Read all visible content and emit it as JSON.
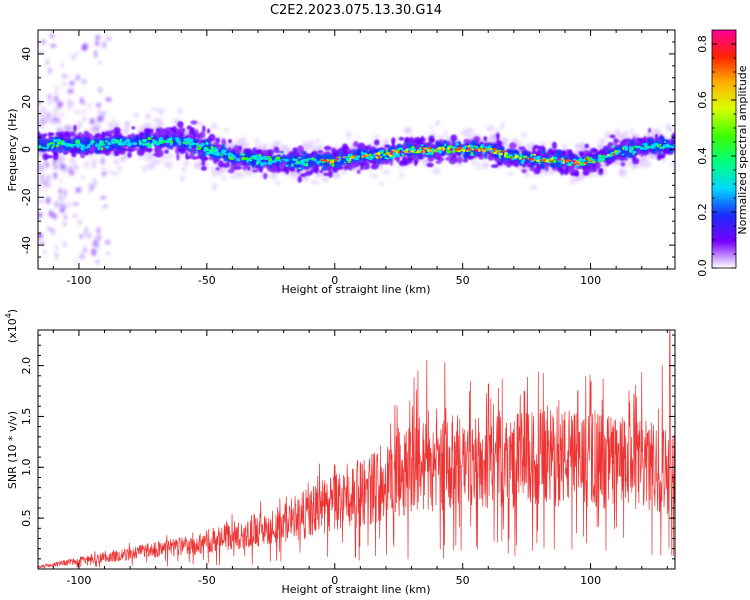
{
  "title": "C2E2.2023.075.13.30.G14",
  "chart_data": [
    {
      "type": "heatmap",
      "name": "spectrogram",
      "xlabel": "Height of straight line (km)",
      "ylabel": "Frequency (Hz)",
      "xlim": [
        -116,
        133
      ],
      "ylim": [
        -50,
        50
      ],
      "xticks": [
        -100,
        -50,
        0,
        50,
        100
      ],
      "yticks": [
        -40,
        -20,
        0,
        20,
        40
      ],
      "colorbar": {
        "label": "Normalized spectral amplitude",
        "range": [
          0.0,
          0.85
        ],
        "ticks": [
          "0.0",
          "0.2",
          "0.4",
          "0.6",
          "0.8"
        ],
        "colors": [
          "#ffffff",
          "#7700ff",
          "#1a2bff",
          "#00d8ff",
          "#00ff7f",
          "#3cff00",
          "#d8ff00",
          "#ffb000",
          "#ff2200",
          "#ff0099"
        ]
      },
      "band_center_hz": [
        [
          -116,
          2
        ],
        [
          -100,
          2
        ],
        [
          -80,
          3
        ],
        [
          -60,
          4
        ],
        [
          -50,
          0
        ],
        [
          -40,
          -3
        ],
        [
          -30,
          -4
        ],
        [
          -20,
          -5
        ],
        [
          -10,
          -5
        ],
        [
          0,
          -5
        ],
        [
          10,
          -3
        ],
        [
          20,
          -2
        ],
        [
          30,
          0
        ],
        [
          40,
          0
        ],
        [
          50,
          0
        ],
        [
          60,
          0
        ],
        [
          70,
          -3
        ],
        [
          80,
          -4
        ],
        [
          90,
          -5
        ],
        [
          100,
          -5
        ],
        [
          110,
          -1
        ],
        [
          120,
          1
        ],
        [
          133,
          2
        ]
      ]
    },
    {
      "type": "line",
      "name": "snr",
      "xlabel": "Height of straight line (km)",
      "ylabel": "SNR (10 * v/v)",
      "scale_label": "(x10",
      "scale_exponent": "4",
      "scale_suffix": ")",
      "xlim": [
        -116,
        133
      ],
      "ylim": [
        0,
        2.35
      ],
      "xticks": [
        -100,
        -50,
        0,
        50,
        100
      ],
      "yticks": [
        "0.5",
        "1.0",
        "1.5",
        "2.0"
      ],
      "color": "#ee3333",
      "trend": [
        [
          -116,
          0.02
        ],
        [
          -100,
          0.08
        ],
        [
          -80,
          0.15
        ],
        [
          -60,
          0.22
        ],
        [
          -40,
          0.32
        ],
        [
          -20,
          0.45
        ],
        [
          0,
          0.65
        ],
        [
          10,
          0.75
        ],
        [
          20,
          0.85
        ],
        [
          30,
          1.0
        ],
        [
          40,
          1.03
        ],
        [
          50,
          1.05
        ],
        [
          60,
          1.05
        ],
        [
          70,
          1.06
        ],
        [
          80,
          1.08
        ],
        [
          90,
          1.1
        ],
        [
          100,
          1.08
        ],
        [
          110,
          1.05
        ],
        [
          120,
          1.02
        ],
        [
          133,
          0.95
        ]
      ],
      "peaks": [
        [
          31,
          1.88
        ],
        [
          32.5,
          1.95
        ],
        [
          36,
          2.05
        ],
        [
          43,
          2.03
        ],
        [
          53,
          1.85
        ],
        [
          60,
          1.82
        ],
        [
          74,
          1.75
        ],
        [
          95,
          1.75
        ],
        [
          100,
          1.83
        ],
        [
          115,
          1.75
        ],
        [
          117,
          1.72
        ],
        [
          120,
          1.93
        ],
        [
          128,
          2.0
        ],
        [
          131,
          2.35
        ],
        [
          133,
          2.2
        ]
      ]
    }
  ]
}
